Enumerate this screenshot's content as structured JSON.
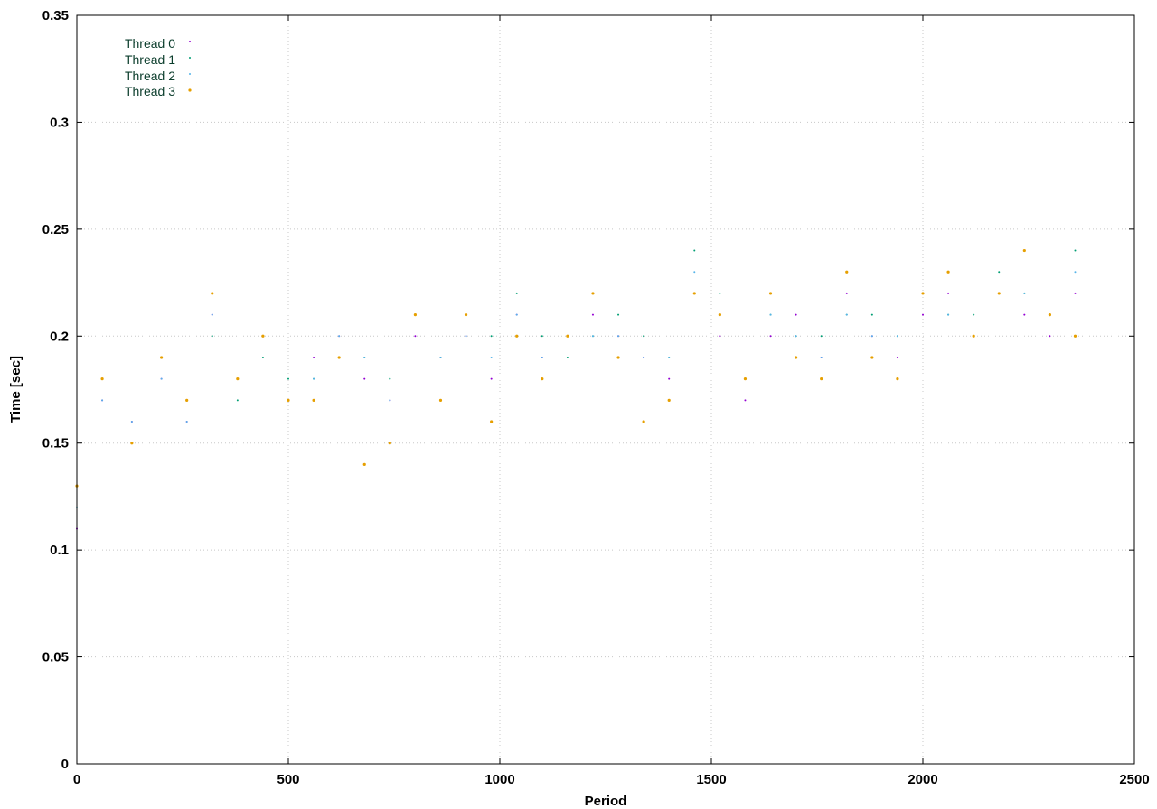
{
  "chart_data": {
    "type": "scatter",
    "title": "",
    "xlabel": "Period",
    "ylabel": "Time [sec]",
    "xlim": [
      0,
      2500
    ],
    "ylim": [
      0,
      0.35
    ],
    "xticks": [
      0,
      500,
      1000,
      1500,
      2000,
      2500
    ],
    "yticks": [
      0,
      0.05,
      0.1,
      0.15,
      0.2,
      0.25,
      0.3,
      0.35
    ],
    "xtick_labels": [
      "0",
      "500",
      "1000",
      "1500",
      "2000",
      "2500"
    ],
    "ytick_labels": [
      "0",
      "0.05",
      "0.1",
      "0.15",
      "0.2",
      "0.25",
      "0.3",
      "0.35"
    ],
    "grid": true,
    "legend_position": "top-left",
    "series": [
      {
        "name": "Thread 0",
        "color": "#9400d3",
        "marker": "dot",
        "x": [
          0,
          60,
          130,
          200,
          260,
          320,
          380,
          440,
          500,
          560,
          620,
          680,
          740,
          800,
          860,
          920,
          980,
          1040,
          1100,
          1160,
          1220,
          1280,
          1340,
          1400,
          1460,
          1520,
          1580,
          1640,
          1700,
          1760,
          1820,
          1880,
          1940,
          2000,
          2060,
          2120,
          2180,
          2240,
          2300,
          2360
        ],
        "y": [
          0.11,
          0.17,
          0.16,
          0.18,
          0.16,
          0.21,
          0.18,
          0.2,
          0.17,
          0.19,
          0.2,
          0.18,
          0.17,
          0.2,
          0.19,
          0.2,
          0.18,
          0.21,
          0.19,
          0.2,
          0.21,
          0.2,
          0.19,
          0.18,
          0.22,
          0.2,
          0.17,
          0.2,
          0.21,
          0.19,
          0.22,
          0.2,
          0.19,
          0.21,
          0.22,
          0.2,
          0.22,
          0.21,
          0.2,
          0.22
        ]
      },
      {
        "name": "Thread 1",
        "color": "#009e73",
        "marker": "dot",
        "x": [
          0,
          60,
          130,
          200,
          260,
          320,
          380,
          440,
          500,
          560,
          620,
          680,
          740,
          800,
          860,
          920,
          980,
          1040,
          1100,
          1160,
          1220,
          1280,
          1340,
          1400,
          1460,
          1520,
          1580,
          1640,
          1700,
          1760,
          1820,
          1880,
          1940,
          2000,
          2060,
          2120,
          2180,
          2240,
          2300,
          2360
        ],
        "y": [
          0.12,
          0.18,
          0.15,
          0.19,
          0.17,
          0.2,
          0.17,
          0.19,
          0.18,
          0.18,
          0.19,
          0.19,
          0.18,
          0.21,
          0.19,
          0.21,
          0.2,
          0.22,
          0.2,
          0.19,
          0.2,
          0.21,
          0.2,
          0.19,
          0.24,
          0.22,
          0.18,
          0.21,
          0.2,
          0.2,
          0.21,
          0.21,
          0.2,
          0.22,
          0.21,
          0.21,
          0.23,
          0.22,
          0.21,
          0.24
        ]
      },
      {
        "name": "Thread 2",
        "color": "#56b4e9",
        "marker": "dot",
        "x": [
          0,
          60,
          130,
          200,
          260,
          320,
          380,
          440,
          500,
          560,
          620,
          680,
          740,
          800,
          860,
          920,
          980,
          1040,
          1100,
          1160,
          1220,
          1280,
          1340,
          1400,
          1460,
          1520,
          1580,
          1640,
          1700,
          1760,
          1820,
          1880,
          1940,
          2000,
          2060,
          2120,
          2180,
          2240,
          2300,
          2360
        ],
        "y": [
          0.12,
          0.17,
          0.16,
          0.18,
          0.16,
          0.21,
          0.18,
          0.2,
          0.17,
          0.18,
          0.2,
          0.19,
          0.17,
          0.21,
          0.19,
          0.2,
          0.19,
          0.21,
          0.19,
          0.2,
          0.2,
          0.2,
          0.19,
          0.19,
          0.23,
          0.21,
          0.18,
          0.21,
          0.2,
          0.19,
          0.21,
          0.2,
          0.2,
          0.22,
          0.21,
          0.2,
          0.22,
          0.22,
          0.21,
          0.23
        ]
      },
      {
        "name": "Thread 3",
        "color": "#e69f00",
        "marker": "dot",
        "x": [
          0,
          60,
          130,
          200,
          260,
          320,
          380,
          440,
          500,
          560,
          620,
          680,
          740,
          800,
          860,
          920,
          980,
          1040,
          1100,
          1160,
          1220,
          1280,
          1340,
          1400,
          1460,
          1520,
          1580,
          1640,
          1700,
          1760,
          1820,
          1880,
          1940,
          2000,
          2060,
          2120,
          2180,
          2240,
          2300,
          2360
        ],
        "y": [
          0.13,
          0.18,
          0.15,
          0.19,
          0.17,
          0.22,
          0.18,
          0.2,
          0.17,
          0.17,
          0.19,
          0.14,
          0.15,
          0.21,
          0.17,
          0.21,
          0.16,
          0.2,
          0.18,
          0.2,
          0.22,
          0.19,
          0.16,
          0.17,
          0.22,
          0.21,
          0.18,
          0.22,
          0.19,
          0.18,
          0.23,
          0.19,
          0.18,
          0.22,
          0.23,
          0.2,
          0.22,
          0.24,
          0.21,
          0.2
        ]
      }
    ]
  }
}
